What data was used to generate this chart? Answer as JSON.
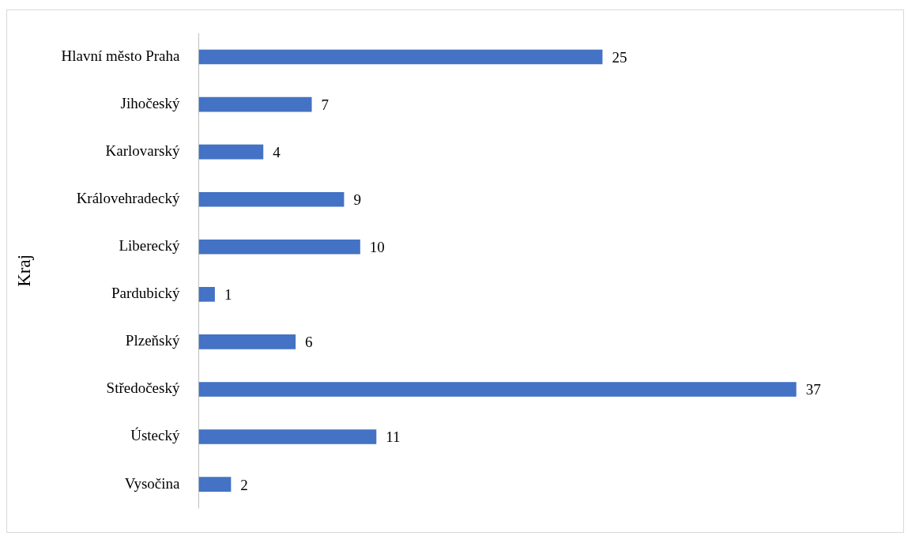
{
  "chart_data": {
    "type": "bar",
    "orientation": "horizontal",
    "ylabel": "Kraj",
    "categories": [
      "Hlavní město Praha",
      "Jihočeský",
      "Karlovarský",
      "Královehradecký",
      "Liberecký",
      "Pardubický",
      "Plzeňský",
      "Středočeský",
      "Ústecký",
      "Vysočina"
    ],
    "values": [
      25,
      7,
      4,
      9,
      10,
      1,
      6,
      37,
      11,
      2
    ],
    "color": "#4472c4",
    "data_labels": true
  }
}
